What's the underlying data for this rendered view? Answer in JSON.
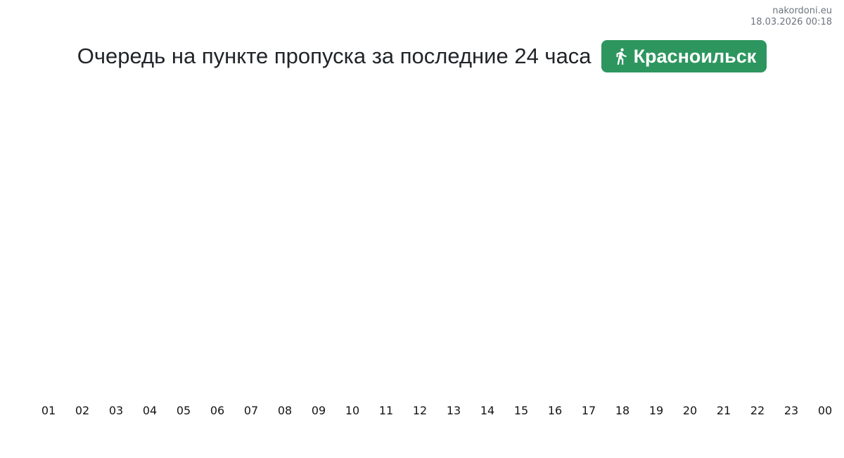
{
  "meta": {
    "site": "nakordoni.eu",
    "datetime": "18.03.2026 00:18"
  },
  "header": {
    "title": "Очередь на пункте пропуска за последние 24 часа",
    "badge": {
      "label": "Красноильск",
      "icon": "pedestrian-icon",
      "background": "#2d965f",
      "text_color": "#ffffff"
    }
  },
  "chart_data": {
    "type": "line",
    "title": "Очередь на пункте пропуска за последние 24 часа",
    "categories": [
      "01",
      "02",
      "03",
      "04",
      "05",
      "06",
      "07",
      "08",
      "09",
      "10",
      "11",
      "12",
      "13",
      "14",
      "15",
      "16",
      "17",
      "18",
      "19",
      "20",
      "21",
      "22",
      "23",
      "00"
    ],
    "values": [],
    "xlabel": "",
    "ylabel": "",
    "grid": false,
    "legend": false,
    "plot_area_empty": true
  },
  "layout": {
    "tick_start_x": 69,
    "tick_spacing_x": 48
  }
}
